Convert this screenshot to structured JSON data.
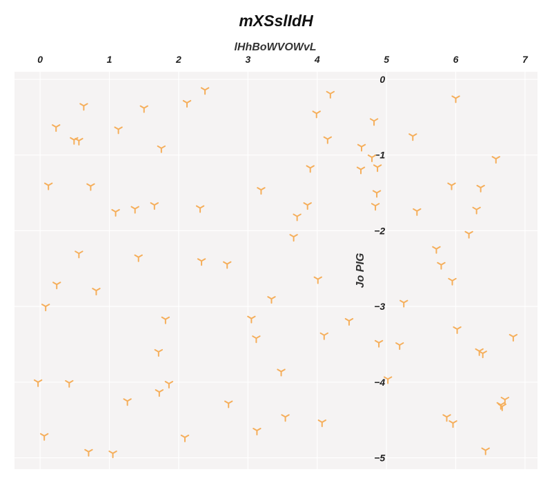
{
  "chart_data": {
    "type": "scatter",
    "title": "mXSslIdH",
    "xlabel": "lHhBoWVOWvL",
    "ylabel": "Jo PIG",
    "xlim": [
      -0.37,
      7.18
    ],
    "ylim": [
      -5.15,
      0.1
    ],
    "xticks": [
      0,
      1,
      2,
      3,
      4,
      5,
      6,
      7
    ],
    "yticks": [
      0,
      -1,
      -2,
      -3,
      -4,
      -5
    ],
    "x_axis_position": "top",
    "y_axis_position": "center (x=5)",
    "grid": true,
    "marker": "tri-down",
    "color": "#f5ae5a",
    "background": "#f5f3f3",
    "series": [
      {
        "x": [
          0.63,
          2.38,
          1.5,
          2.12,
          4.19,
          6.0,
          0.23,
          1.13,
          3.99,
          4.82,
          0.49,
          0.56,
          1.75,
          4.15,
          5.38,
          4.64,
          6.58,
          4.79,
          4.87,
          3.9,
          4.63,
          0.12,
          0.73,
          3.19,
          5.94,
          6.36,
          4.86,
          1.65,
          1.37,
          1.09,
          2.31,
          3.86,
          4.84,
          5.44,
          6.3,
          3.71,
          6.19,
          3.66,
          0.56,
          1.42,
          2.33,
          2.7,
          5.72,
          5.79,
          0.24,
          0.81,
          4.01,
          5.95,
          0.08,
          3.34,
          5.25,
          1.81,
          3.05,
          4.46,
          6.02,
          3.12,
          4.1,
          4.89,
          5.19,
          6.83,
          1.71,
          6.34,
          6.39,
          3.48,
          5.02,
          -0.03,
          0.42,
          1.86,
          1.72,
          1.26,
          2.72,
          6.71,
          6.65,
          6.67,
          3.54,
          5.87,
          5.96,
          4.07,
          3.13,
          0.06,
          2.09,
          6.43,
          0.7,
          1.05
        ],
        "y": [
          -0.35,
          -0.14,
          -0.38,
          -0.31,
          -0.19,
          -0.25,
          -0.63,
          -0.66,
          -0.45,
          -0.55,
          -0.8,
          -0.81,
          -0.91,
          -0.79,
          -0.75,
          -0.89,
          -1.05,
          -1.03,
          -1.16,
          -1.17,
          -1.19,
          -1.4,
          -1.41,
          -1.46,
          -1.4,
          -1.43,
          -1.5,
          -1.66,
          -1.71,
          -1.75,
          -1.7,
          -1.66,
          -1.67,
          -1.74,
          -1.72,
          -1.81,
          -2.04,
          -2.08,
          -2.3,
          -2.35,
          -2.4,
          -2.44,
          -2.24,
          -2.45,
          -2.71,
          -2.79,
          -2.64,
          -2.66,
          -3.0,
          -2.9,
          -2.95,
          -3.17,
          -3.16,
          -3.19,
          -3.3,
          -3.42,
          -3.38,
          -3.48,
          -3.51,
          -3.4,
          -3.6,
          -3.59,
          -3.62,
          -3.86,
          -3.96,
          -4.0,
          -4.01,
          -4.02,
          -4.13,
          -4.25,
          -4.28,
          -4.23,
          -4.3,
          -4.32,
          -4.46,
          -4.46,
          -4.54,
          -4.53,
          -4.64,
          -4.71,
          -4.73,
          -4.9,
          -4.92,
          -4.94
        ]
      }
    ]
  }
}
